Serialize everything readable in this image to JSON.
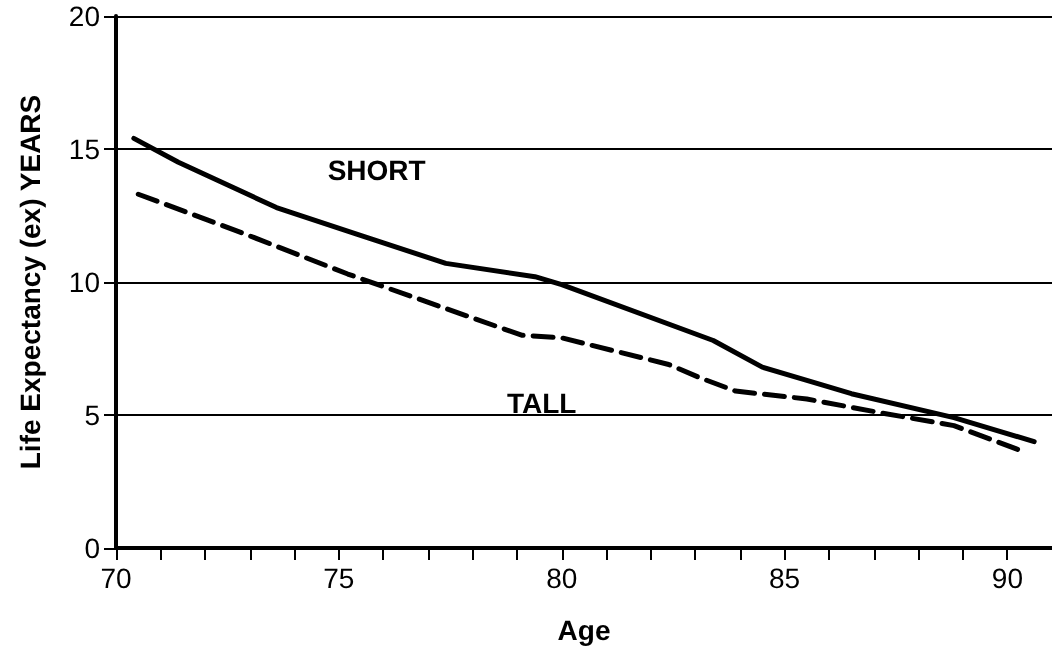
{
  "chart_data": {
    "type": "line",
    "xlabel": "Age",
    "ylabel": "Life Expectancy (ex) YEARS",
    "xlim": [
      70,
      91
    ],
    "xticks": [
      70,
      {
        "value": 71,
        "label": null
      },
      {
        "value": 72,
        "label": null
      },
      {
        "value": 73,
        "label": null
      },
      {
        "value": 74,
        "label": null
      },
      75,
      {
        "value": 76,
        "label": null
      },
      {
        "value": 77,
        "label": null
      },
      {
        "value": 78,
        "label": null
      },
      {
        "value": 79,
        "label": null
      },
      80,
      {
        "value": 81,
        "label": null
      },
      {
        "value": 82,
        "label": null
      },
      {
        "value": 83,
        "label": null
      },
      {
        "value": 84,
        "label": null
      },
      85,
      {
        "value": 86,
        "label": null
      },
      {
        "value": 87,
        "label": null
      },
      {
        "value": 88,
        "label": null
      },
      {
        "value": 89,
        "label": null
      },
      90
    ],
    "ylim": [
      0,
      20
    ],
    "yticks": [
      0,
      5,
      10,
      15,
      20
    ],
    "grid": "y",
    "legend": false,
    "marker": "none",
    "series": [
      {
        "name": "SHORT",
        "color": "#000000",
        "line_style": "solid",
        "x": [
          70.4,
          71.4,
          73.6,
          75.4,
          77.4,
          79.4,
          80.0,
          83.4,
          84.5,
          85.5,
          86.5,
          88.8,
          90.6
        ],
        "values": [
          15.4,
          14.5,
          12.8,
          11.8,
          10.7,
          10.2,
          9.9,
          7.8,
          6.8,
          6.3,
          5.8,
          4.9,
          4.0
        ]
      },
      {
        "name": "TALL",
        "color": "#000000",
        "line_style": "dashed",
        "x": [
          70.5,
          72.9,
          75.2,
          79.1,
          80.0,
          82.4,
          83.1,
          83.9,
          85.5,
          87.1,
          88.8,
          90.4
        ],
        "values": [
          13.3,
          11.8,
          10.3,
          8.0,
          7.9,
          6.9,
          6.4,
          5.9,
          5.6,
          5.1,
          4.6,
          3.6
        ]
      }
    ]
  }
}
